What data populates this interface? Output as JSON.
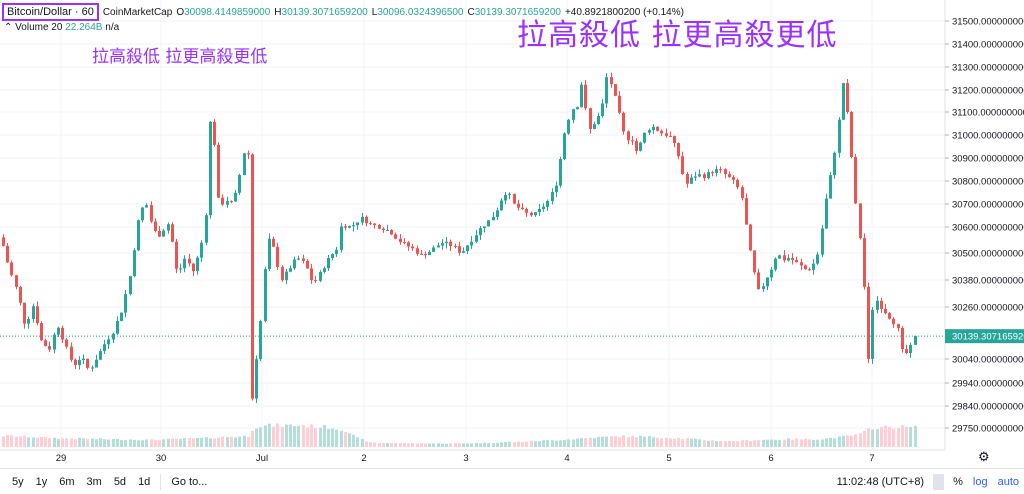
{
  "legend": {
    "symbol": "Bitcoin/Dollar · 60",
    "source": "CoinMarketCap",
    "o_key": "O",
    "o_val": "30098.4149859000",
    "h_key": "H",
    "h_val": "30139.3071659200",
    "l_key": "L",
    "l_val": "30096.0324396500",
    "c_key": "C",
    "c_val": "30139.3071659200",
    "change": "+40.8921800200 (+0.14%)",
    "vol_label": "Volume 20",
    "vol_val": "22.264B",
    "vol_na": "n/a"
  },
  "overlay": {
    "big": "拉高殺低 拉更高殺更低",
    "small": "拉高殺低 拉更高殺更低"
  },
  "bottom": {
    "ranges": [
      "5y",
      "1y",
      "6m",
      "3m",
      "5d",
      "1d"
    ],
    "goto": "Go to...",
    "time": "11:02:48 (UTC+8)",
    "pct": "%",
    "log": "log",
    "auto": "auto"
  },
  "colors": {
    "up": "#26a69a",
    "down": "#ef5350",
    "up_vol": "#b2dfdb",
    "down_vol": "#ffcdd2",
    "accent": "#9b30ff",
    "price_line": "#26a69a"
  },
  "chart_data": {
    "type": "candlestick",
    "title": "Bitcoin/Dollar · 60",
    "y_ticks": [
      29750,
      29840,
      29940,
      30040,
      30140,
      30260,
      30380,
      30500,
      30600,
      30700,
      30800,
      30900,
      31000,
      31100,
      31200,
      31300,
      31400,
      31500
    ],
    "y_tick_labels": [
      "29750.0000000000",
      "29840.0000000000",
      "29940.0000000000",
      "30040.0000000000",
      "30140.0000000000",
      "30260.0000000000",
      "30380.0000000000",
      "30500.0000000000",
      "30600.0000000000",
      "30700.0000000000",
      "30800.0000000000",
      "30900.0000000000",
      "31000.0000000000",
      "31100.0000000000",
      "31200.0000000000",
      "31300.0000000000",
      "31400.0000000000",
      "31500.0000000000"
    ],
    "x_labels": [
      "29",
      "30",
      "Jul",
      "2",
      "3",
      "4",
      "5",
      "6",
      "7"
    ],
    "last_price": "30139.3071659200",
    "last_value": 30139.3,
    "close_path": [
      [
        0,
        30560
      ],
      [
        8,
        30430
      ],
      [
        16,
        30330
      ],
      [
        24,
        30180
      ],
      [
        32,
        30270
      ],
      [
        40,
        30120
      ],
      [
        48,
        30080
      ],
      [
        56,
        30190
      ],
      [
        64,
        30100
      ],
      [
        72,
        30010
      ],
      [
        80,
        30050
      ],
      [
        88,
        29990
      ],
      [
        96,
        30050
      ],
      [
        104,
        30110
      ],
      [
        112,
        30160
      ],
      [
        120,
        30240
      ],
      [
        128,
        30380
      ],
      [
        136,
        30610
      ],
      [
        144,
        30720
      ],
      [
        150,
        30620
      ],
      [
        156,
        30560
      ],
      [
        162,
        30590
      ],
      [
        168,
        30620
      ],
      [
        176,
        30400
      ],
      [
        184,
        30480
      ],
      [
        192,
        30420
      ],
      [
        200,
        30530
      ],
      [
        206,
        30700
      ],
      [
        210,
        31210
      ],
      [
        214,
        30880
      ],
      [
        218,
        30680
      ],
      [
        224,
        30720
      ],
      [
        232,
        30700
      ],
      [
        240,
        30860
      ],
      [
        246,
        31010
      ],
      [
        249,
        30640
      ],
      [
        250,
        29830
      ],
      [
        254,
        30010
      ],
      [
        258,
        30130
      ],
      [
        262,
        30330
      ],
      [
        266,
        30560
      ],
      [
        272,
        30520
      ],
      [
        280,
        30380
      ],
      [
        288,
        30430
      ],
      [
        296,
        30480
      ],
      [
        304,
        30450
      ],
      [
        312,
        30360
      ],
      [
        320,
        30420
      ],
      [
        328,
        30480
      ],
      [
        336,
        30520
      ],
      [
        340,
        30610
      ],
      [
        350,
        30600
      ],
      [
        360,
        30640
      ],
      [
        370,
        30610
      ],
      [
        380,
        30600
      ],
      [
        390,
        30580
      ],
      [
        400,
        30540
      ],
      [
        410,
        30520
      ],
      [
        420,
        30490
      ],
      [
        430,
        30510
      ],
      [
        440,
        30540
      ],
      [
        450,
        30530
      ],
      [
        460,
        30500
      ],
      [
        470,
        30550
      ],
      [
        478,
        30590
      ],
      [
        486,
        30620
      ],
      [
        494,
        30660
      ],
      [
        500,
        30720
      ],
      [
        506,
        30760
      ],
      [
        512,
        30700
      ],
      [
        518,
        30680
      ],
      [
        524,
        30660
      ],
      [
        532,
        30650
      ],
      [
        540,
        30680
      ],
      [
        548,
        30720
      ],
      [
        556,
        30800
      ],
      [
        562,
        30990
      ],
      [
        570,
        31110
      ],
      [
        576,
        31130
      ],
      [
        580,
        31230
      ],
      [
        584,
        31120
      ],
      [
        588,
        31020
      ],
      [
        594,
        31060
      ],
      [
        600,
        31100
      ],
      [
        606,
        31270
      ],
      [
        612,
        31200
      ],
      [
        618,
        31090
      ],
      [
        624,
        30980
      ],
      [
        630,
        30990
      ],
      [
        636,
        30920
      ],
      [
        642,
        31000
      ],
      [
        650,
        31040
      ],
      [
        660,
        31010
      ],
      [
        670,
        30990
      ],
      [
        678,
        30900
      ],
      [
        684,
        30780
      ],
      [
        690,
        30810
      ],
      [
        696,
        30830
      ],
      [
        702,
        30820
      ],
      [
        710,
        30840
      ],
      [
        718,
        30850
      ],
      [
        726,
        30820
      ],
      [
        734,
        30790
      ],
      [
        740,
        30740
      ],
      [
        746,
        30570
      ],
      [
        752,
        30430
      ],
      [
        758,
        30320
      ],
      [
        764,
        30380
      ],
      [
        770,
        30430
      ],
      [
        776,
        30500
      ],
      [
        782,
        30470
      ],
      [
        788,
        30480
      ],
      [
        794,
        30460
      ],
      [
        800,
        30440
      ],
      [
        806,
        30420
      ],
      [
        812,
        30450
      ],
      [
        818,
        30510
      ],
      [
        824,
        30700
      ],
      [
        830,
        30840
      ],
      [
        836,
        31000
      ],
      [
        842,
        31240
      ],
      [
        848,
        31020
      ],
      [
        854,
        30710
      ],
      [
        858,
        30580
      ],
      [
        862,
        30460
      ],
      [
        866,
        29960
      ],
      [
        870,
        30230
      ],
      [
        874,
        30300
      ],
      [
        878,
        30270
      ],
      [
        884,
        30240
      ],
      [
        890,
        30210
      ],
      [
        896,
        30180
      ],
      [
        902,
        30050
      ],
      [
        908,
        30080
      ],
      [
        914,
        30139
      ]
    ],
    "volume_profile": [
      [
        0,
        0.16
      ],
      [
        30,
        0.14
      ],
      [
        60,
        0.12
      ],
      [
        100,
        0.11
      ],
      [
        150,
        0.1
      ],
      [
        200,
        0.12
      ],
      [
        225,
        0.14
      ],
      [
        248,
        0.15
      ],
      [
        252,
        0.28
      ],
      [
        270,
        0.3
      ],
      [
        300,
        0.3
      ],
      [
        330,
        0.27
      ],
      [
        345,
        0.23
      ],
      [
        355,
        0.13
      ],
      [
        370,
        0.06
      ],
      [
        420,
        0.05
      ],
      [
        460,
        0.05
      ],
      [
        490,
        0.06
      ],
      [
        530,
        0.08
      ],
      [
        560,
        0.1
      ],
      [
        590,
        0.13
      ],
      [
        620,
        0.15
      ],
      [
        650,
        0.14
      ],
      [
        680,
        0.12
      ],
      [
        710,
        0.09
      ],
      [
        730,
        0.08
      ],
      [
        760,
        0.1
      ],
      [
        790,
        0.11
      ],
      [
        820,
        0.11
      ],
      [
        840,
        0.14
      ],
      [
        860,
        0.18
      ],
      [
        870,
        0.27
      ],
      [
        900,
        0.28
      ],
      [
        914,
        0.27
      ]
    ]
  }
}
